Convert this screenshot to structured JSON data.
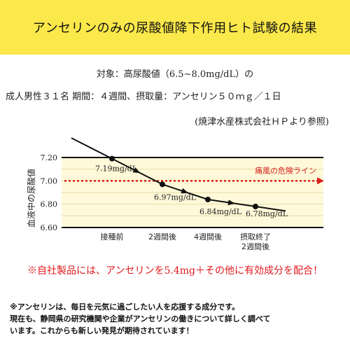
{
  "header": {
    "title": "アンセリンのみの尿酸値降下作用ヒト試験の結果",
    "background_color": "#fbe84a"
  },
  "study": {
    "subject_line": "対象：高尿酸値（6.5∼8.0mg/dL）の",
    "conditions_line": "成人男性３１名 期間：４週間、摂取量：アンセリン５０ｍｇ／１日",
    "source_line": "(焼津水産株式会社ＨＰより参照)"
  },
  "chart_data": {
    "type": "line",
    "title": "",
    "ylabel": "血液中の尿酸値",
    "xlabel": "",
    "categories": [
      "接種前",
      "2週間後",
      "4週間後",
      "摂取終了\n2週間後"
    ],
    "y_ticks": [
      "7.20",
      "7.00",
      "6.80",
      "6.60"
    ],
    "ylim": [
      6.6,
      7.25
    ],
    "grid": true,
    "series": [
      {
        "name": "",
        "values": [
          7.19,
          6.97,
          6.84,
          6.78
        ],
        "labels": [
          "7.19mg/dL",
          "6.97mg/dL",
          "6.84mg/dL",
          "6.78mg/dL"
        ],
        "color": "#111111"
      }
    ],
    "threshold": {
      "value": 7.0,
      "label": "痛風の危険ライン",
      "color": "#d9201e"
    },
    "plot_background": "#fff9d9"
  },
  "notice": {
    "text": "※自社製品には、アンセリンを5.4mg＋その他に有効成分を配合！",
    "color": "#e0191e"
  },
  "footer": {
    "line1": "※アンセリンは、毎日を元気に過ごしたい人を応援する成分です。",
    "line2": "現在も、静岡県の研究機関や企業がアンセリンの働きについて詳しく調べて",
    "line3": "います。これからも新しい発見が期待されています！"
  }
}
